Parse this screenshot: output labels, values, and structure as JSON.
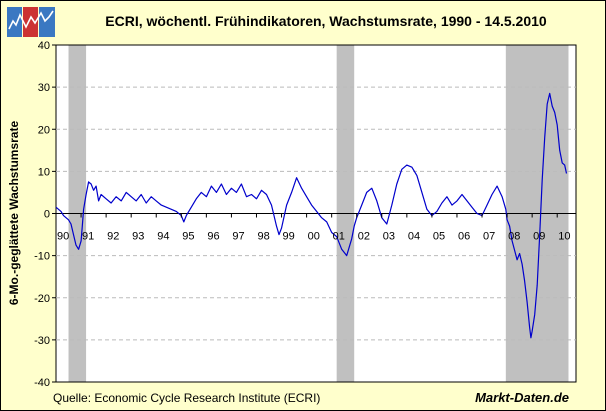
{
  "brand": {
    "logo_icon": "chart-logo-icon"
  },
  "footer": {
    "source": "Quelle: Economic Cycle Research Institute (ECRI)",
    "site": "Markt-Daten.de"
  },
  "colors": {
    "background": "#ffffcc",
    "plot_bg": "#ffffff",
    "line": "#0000cc",
    "recession": "#c0c0c0",
    "grid": "#bbbbbb"
  },
  "chart_data": {
    "type": "line",
    "title": "ECRI, wöchentl. Frühindikatoren, Wachstumsrate, 1990 - 14.5.2010",
    "xlabel": "",
    "ylabel": "6-Mo.-geglättete Wachstumsrate",
    "xlim": [
      1990.0,
      2010.75
    ],
    "ylim": [
      -40,
      40
    ],
    "y_ticks": [
      -40,
      -30,
      -20,
      -10,
      0,
      10,
      20,
      30,
      40
    ],
    "x_ticks": [
      {
        "year": 1990,
        "label": "90"
      },
      {
        "year": 1991,
        "label": "91"
      },
      {
        "year": 1992,
        "label": "92"
      },
      {
        "year": 1993,
        "label": "93"
      },
      {
        "year": 1994,
        "label": "94"
      },
      {
        "year": 1995,
        "label": "95"
      },
      {
        "year": 1996,
        "label": "96"
      },
      {
        "year": 1997,
        "label": "97"
      },
      {
        "year": 1998,
        "label": "98"
      },
      {
        "year": 1999,
        "label": "99"
      },
      {
        "year": 2000,
        "label": "00"
      },
      {
        "year": 2001,
        "label": "01"
      },
      {
        "year": 2002,
        "label": "02"
      },
      {
        "year": 2003,
        "label": "03"
      },
      {
        "year": 2004,
        "label": "04"
      },
      {
        "year": 2005,
        "label": "05"
      },
      {
        "year": 2006,
        "label": "06"
      },
      {
        "year": 2007,
        "label": "07"
      },
      {
        "year": 2008,
        "label": "08"
      },
      {
        "year": 2009,
        "label": "09"
      },
      {
        "year": 2010,
        "label": "10"
      }
    ],
    "grid": true,
    "recessions": [
      {
        "start": 1990.5,
        "end": 1991.2
      },
      {
        "start": 2001.2,
        "end": 2001.9
      },
      {
        "start": 2007.95,
        "end": 2010.45
      }
    ],
    "series": [
      {
        "name": "",
        "x": [
          1990.0,
          1990.1,
          1990.2,
          1990.3,
          1990.5,
          1990.6,
          1990.7,
          1990.8,
          1990.9,
          1991.0,
          1991.05,
          1991.1,
          1991.2,
          1991.3,
          1991.4,
          1991.5,
          1991.6,
          1991.7,
          1991.8,
          1992.0,
          1992.2,
          1992.4,
          1992.6,
          1992.8,
          1993.0,
          1993.2,
          1993.4,
          1993.6,
          1993.8,
          1994.0,
          1994.2,
          1994.4,
          1994.6,
          1994.8,
          1995.0,
          1995.1,
          1995.2,
          1995.4,
          1995.6,
          1995.8,
          1996.0,
          1996.2,
          1996.4,
          1996.6,
          1996.8,
          1997.0,
          1997.2,
          1997.4,
          1997.6,
          1997.8,
          1998.0,
          1998.2,
          1998.4,
          1998.6,
          1998.8,
          1998.9,
          1999.0,
          1999.2,
          1999.4,
          1999.6,
          1999.8,
          2000.0,
          2000.2,
          2000.4,
          2000.6,
          2000.8,
          2001.0,
          2001.2,
          2001.4,
          2001.6,
          2001.8,
          2001.9,
          2002.0,
          2002.2,
          2002.4,
          2002.6,
          2002.8,
          2003.0,
          2003.2,
          2003.4,
          2003.6,
          2003.8,
          2004.0,
          2004.2,
          2004.4,
          2004.6,
          2004.8,
          2005.0,
          2005.2,
          2005.4,
          2005.6,
          2005.8,
          2006.0,
          2006.2,
          2006.4,
          2006.6,
          2006.8,
          2007.0,
          2007.2,
          2007.4,
          2007.6,
          2007.8,
          2007.95,
          2008.0,
          2008.1,
          2008.2,
          2008.4,
          2008.5,
          2008.6,
          2008.7,
          2008.8,
          2008.9,
          2008.95,
          2009.0,
          2009.1,
          2009.2,
          2009.3,
          2009.4,
          2009.5,
          2009.6,
          2009.7,
          2009.8,
          2009.9,
          2010.0,
          2010.1,
          2010.2,
          2010.3,
          2010.37
        ],
        "y": [
          1.5,
          1.0,
          0.5,
          -0.5,
          -1.5,
          -2.5,
          -5.0,
          -7.5,
          -8.5,
          -6.5,
          -3.0,
          1.0,
          4.5,
          7.5,
          7.0,
          5.5,
          6.5,
          3.0,
          4.5,
          3.5,
          2.5,
          4.0,
          3.0,
          5.0,
          4.0,
          3.0,
          4.5,
          2.5,
          4.0,
          3.0,
          2.0,
          1.5,
          1.0,
          0.5,
          -0.5,
          -2.0,
          -0.5,
          1.5,
          3.5,
          5.0,
          4.0,
          6.5,
          5.0,
          7.0,
          4.5,
          6.0,
          5.0,
          7.0,
          4.0,
          4.5,
          3.5,
          5.5,
          4.5,
          2.0,
          -3.0,
          -5.0,
          -3.5,
          2.0,
          5.0,
          8.5,
          6.0,
          4.0,
          2.0,
          0.5,
          -1.0,
          -2.0,
          -4.5,
          -5.5,
          -8.5,
          -10.0,
          -6.0,
          -3.0,
          -1.0,
          2.0,
          5.0,
          6.0,
          3.0,
          -1.0,
          -2.5,
          2.0,
          7.0,
          10.5,
          11.5,
          11.0,
          9.0,
          5.0,
          1.0,
          -0.5,
          0.5,
          2.5,
          4.0,
          2.0,
          3.0,
          4.5,
          3.0,
          1.5,
          0.0,
          -0.5,
          2.0,
          4.5,
          6.5,
          4.0,
          1.0,
          -1.5,
          -3.0,
          -6.5,
          -11.0,
          -9.5,
          -12.0,
          -16.0,
          -21.0,
          -27.0,
          -29.5,
          -28.0,
          -24.0,
          -17.0,
          -5.0,
          8.0,
          18.0,
          26.0,
          28.5,
          25.5,
          24.0,
          21.0,
          15.0,
          12.0,
          11.5,
          9.5
        ]
      }
    ]
  }
}
